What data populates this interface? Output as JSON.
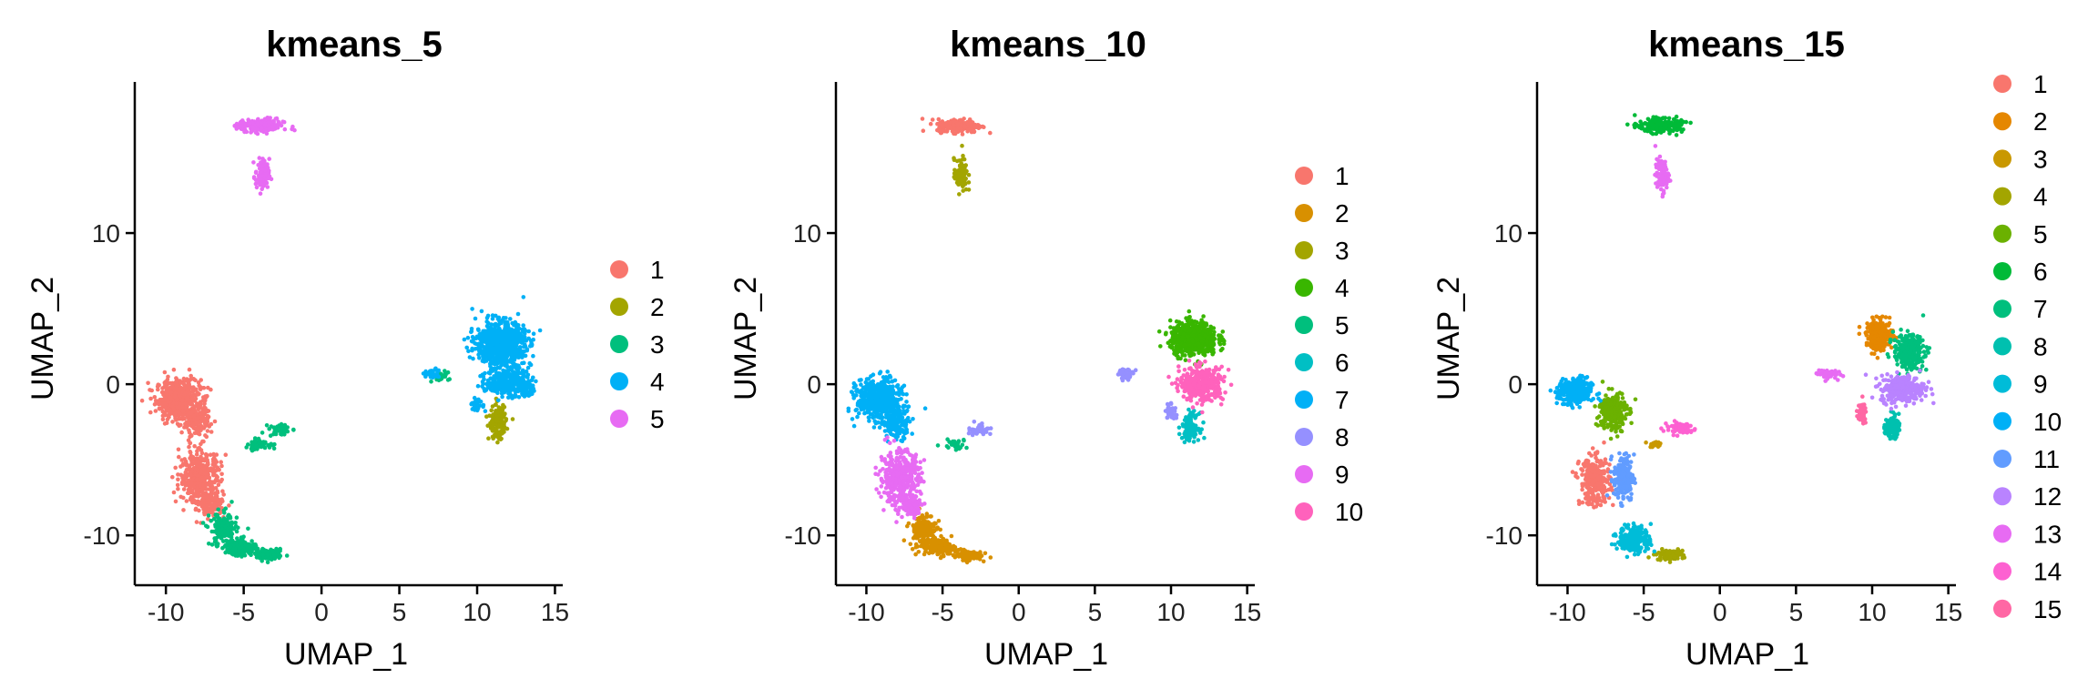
{
  "chart_data": [
    {
      "type": "scatter",
      "title": "kmeans_5",
      "xlabel": "UMAP_1",
      "ylabel": "UMAP_2",
      "xlim": [
        -12,
        15.5
      ],
      "ylim": [
        -13.3,
        20
      ],
      "xticks": [
        "-10",
        "-5",
        "0",
        "5",
        "10",
        "15"
      ],
      "yticks": [
        "-10",
        "0",
        "10"
      ],
      "legend": [
        "1",
        "2",
        "3",
        "4",
        "5"
      ],
      "colors": [
        "#F8766D",
        "#A3A500",
        "#00BF7D",
        "#00B0F6",
        "#E76BF3"
      ],
      "clusters": [
        {
          "name": "1",
          "blobs": [
            [
              -9.2,
              -1.0,
              1.3,
              1.2,
              500
            ],
            [
              -8.0,
              -2.5,
              0.8,
              1.0,
              150
            ],
            [
              -7.8,
              -6.2,
              1.2,
              1.6,
              400
            ],
            [
              -7.0,
              -8.0,
              0.7,
              0.6,
              100
            ]
          ]
        },
        {
          "name": "2",
          "blobs": [
            [
              11.3,
              -2.5,
              0.5,
              1.0,
              150
            ]
          ]
        },
        {
          "name": "3",
          "blobs": [
            [
              -6.3,
              -9.6,
              0.8,
              1.0,
              150
            ],
            [
              -5.2,
              -10.8,
              0.9,
              0.5,
              180
            ],
            [
              -3.3,
              -11.3,
              0.8,
              0.3,
              100
            ],
            [
              -4.0,
              -4.0,
              1.0,
              0.3,
              50
            ],
            [
              -2.6,
              -3.0,
              0.7,
              0.4,
              40
            ],
            [
              7.5,
              0.5,
              0.6,
              0.3,
              25
            ]
          ]
        },
        {
          "name": "4",
          "blobs": [
            [
              11.5,
              2.7,
              1.4,
              1.3,
              800
            ],
            [
              12.0,
              0.2,
              1.3,
              0.9,
              300
            ],
            [
              10.0,
              -1.4,
              0.4,
              0.4,
              30
            ],
            [
              13.2,
              -0.4,
              0.6,
              0.4,
              40
            ],
            [
              7.0,
              0.7,
              0.5,
              0.3,
              30
            ]
          ]
        },
        {
          "name": "5",
          "blobs": [
            [
              -3.9,
              17.1,
              1.3,
              0.4,
              220
            ],
            [
              -3.8,
              13.8,
              0.4,
              1.0,
              90
            ]
          ]
        }
      ]
    },
    {
      "type": "scatter",
      "title": "kmeans_10",
      "xlabel": "UMAP_1",
      "ylabel": "UMAP_2",
      "xlim": [
        -12,
        15.5
      ],
      "ylim": [
        -13.3,
        20
      ],
      "xticks": [
        "-10",
        "-5",
        "0",
        "5",
        "10",
        "15"
      ],
      "yticks": [
        "-10",
        "0",
        "10"
      ],
      "legend": [
        "1",
        "2",
        "3",
        "4",
        "5",
        "6",
        "7",
        "8",
        "9",
        "10"
      ],
      "colors": [
        "#F8766D",
        "#D89000",
        "#A3A500",
        "#39B600",
        "#00BF7D",
        "#00BFC4",
        "#00B0F6",
        "#9590FF",
        "#E76BF3",
        "#FF62BC"
      ],
      "clusters": [
        {
          "name": "1",
          "blobs": [
            [
              -3.9,
              17.1,
              1.3,
              0.4,
              220
            ]
          ]
        },
        {
          "name": "2",
          "blobs": [
            [
              -6.3,
              -9.6,
              0.8,
              1.0,
              150
            ],
            [
              -5.2,
              -10.8,
              0.9,
              0.5,
              180
            ],
            [
              -3.3,
              -11.3,
              0.8,
              0.3,
              100
            ]
          ]
        },
        {
          "name": "3",
          "blobs": [
            [
              -3.8,
              13.8,
              0.4,
              1.0,
              90
            ]
          ]
        },
        {
          "name": "4",
          "blobs": [
            [
              11.5,
              3.0,
              1.4,
              1.0,
              600
            ]
          ]
        },
        {
          "name": "5",
          "blobs": [
            [
              -4.2,
              -4.0,
              0.8,
              0.3,
              30
            ]
          ]
        },
        {
          "name": "6",
          "blobs": [
            [
              11.3,
              -2.8,
              0.5,
              0.8,
              120
            ]
          ]
        },
        {
          "name": "7",
          "blobs": [
            [
              -9.2,
              -1.0,
              1.3,
              1.2,
              500
            ],
            [
              -8.0,
              -2.5,
              0.8,
              1.0,
              150
            ]
          ]
        },
        {
          "name": "8",
          "blobs": [
            [
              7.0,
              0.7,
              0.5,
              0.3,
              40
            ],
            [
              10.0,
              -1.8,
              0.3,
              0.5,
              40
            ],
            [
              -2.6,
              -3.0,
              0.7,
              0.4,
              40
            ]
          ]
        },
        {
          "name": "9",
          "blobs": [
            [
              -7.8,
              -6.2,
              1.2,
              1.6,
              400
            ],
            [
              -7.0,
              -8.0,
              0.7,
              0.6,
              100
            ]
          ]
        },
        {
          "name": "10",
          "blobs": [
            [
              12.0,
              0.0,
              1.3,
              1.0,
              350
            ]
          ]
        }
      ]
    },
    {
      "type": "scatter",
      "title": "kmeans_15",
      "xlabel": "UMAP_1",
      "ylabel": "UMAP_2",
      "xlim": [
        -12,
        15.5
      ],
      "ylim": [
        -13.3,
        20
      ],
      "xticks": [
        "-10",
        "-5",
        "0",
        "5",
        "10",
        "15"
      ],
      "yticks": [
        "-10",
        "0",
        "10"
      ],
      "legend": [
        "1",
        "2",
        "3",
        "4",
        "5",
        "6",
        "7",
        "8",
        "9",
        "10",
        "11",
        "12",
        "13",
        "14",
        "15"
      ],
      "colors": [
        "#F8766D",
        "#E58700",
        "#C99800",
        "#A3A500",
        "#6BB100",
        "#00BA38",
        "#00BF7D",
        "#00C0AF",
        "#00BCD8",
        "#00B0F6",
        "#619CFF",
        "#B983FF",
        "#E76BF3",
        "#FD61D1",
        "#FF67A4"
      ],
      "clusters": [
        {
          "name": "1",
          "blobs": [
            [
              -8.2,
              -6.4,
              0.9,
              1.4,
              300
            ]
          ]
        },
        {
          "name": "2",
          "blobs": [
            [
              10.5,
              3.2,
              0.8,
              0.9,
              250
            ]
          ]
        },
        {
          "name": "3",
          "blobs": [
            [
              -4.2,
              -4.0,
              0.5,
              0.2,
              20
            ]
          ]
        },
        {
          "name": "4",
          "blobs": [
            [
              -3.3,
              -11.3,
              0.8,
              0.3,
              100
            ]
          ]
        },
        {
          "name": "5",
          "blobs": [
            [
              -7.0,
              -1.8,
              0.8,
              1.2,
              250
            ]
          ]
        },
        {
          "name": "6",
          "blobs": [
            [
              -3.9,
              17.1,
              1.3,
              0.4,
              220
            ]
          ]
        },
        {
          "name": "7",
          "blobs": [
            [
              12.4,
              2.2,
              0.9,
              1.0,
              300
            ]
          ]
        },
        {
          "name": "8",
          "blobs": [
            [
              11.3,
              -2.8,
              0.4,
              0.7,
              100
            ]
          ]
        },
        {
          "name": "9",
          "blobs": [
            [
              -5.6,
              -10.3,
              1.0,
              0.8,
              220
            ]
          ]
        },
        {
          "name": "10",
          "blobs": [
            [
              -9.5,
              -0.5,
              1.0,
              0.8,
              300
            ]
          ]
        },
        {
          "name": "11",
          "blobs": [
            [
              -6.3,
              -6.2,
              0.6,
              1.4,
              200
            ]
          ]
        },
        {
          "name": "12",
          "blobs": [
            [
              12.0,
              -0.3,
              1.3,
              0.8,
              300
            ]
          ]
        },
        {
          "name": "13",
          "blobs": [
            [
              -3.8,
              13.8,
              0.4,
              1.0,
              90
            ],
            [
              7.0,
              0.7,
              0.6,
              0.3,
              60
            ]
          ]
        },
        {
          "name": "14",
          "blobs": [
            [
              -2.6,
              -2.9,
              1.0,
              0.4,
              60
            ]
          ]
        },
        {
          "name": "15",
          "blobs": [
            [
              9.3,
              -2.0,
              0.3,
              0.6,
              50
            ]
          ]
        }
      ]
    }
  ]
}
